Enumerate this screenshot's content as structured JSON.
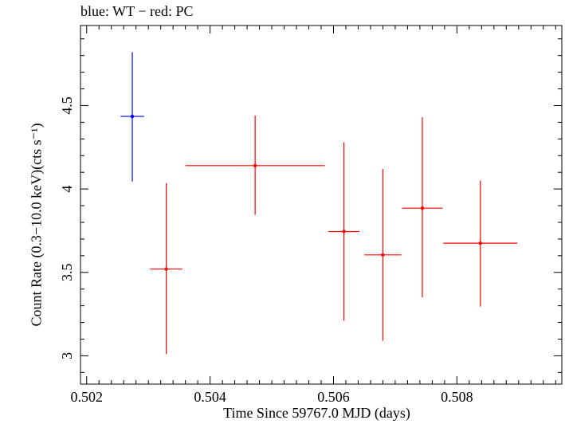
{
  "chart_data": {
    "type": "scatter",
    "title": "blue: WT − red: PC",
    "xlabel": "Time Since 59767.0 MJD (days)",
    "ylabel": "Count Rate (0.3−10.0 keV)(cts s⁻¹)",
    "xlim": [
      0.5019,
      0.5097
    ],
    "ylim": [
      2.83,
      4.98
    ],
    "x_ticks": [
      0.502,
      0.504,
      0.506,
      0.508
    ],
    "x_tick_labels": [
      "0.502",
      "0.504",
      "0.506",
      "0.508"
    ],
    "y_ticks": [
      3,
      3.5,
      4,
      4.5
    ],
    "y_tick_labels": [
      "3",
      "3.5",
      "4",
      "4.5"
    ],
    "grid": false,
    "series": [
      {
        "name": "WT",
        "color": "#0000ff",
        "points": [
          {
            "x": 0.50274,
            "xerr": 0.00019,
            "y": 4.435,
            "yerr_low": 0.39,
            "yerr_high": 0.385
          }
        ]
      },
      {
        "name": "PC",
        "color": "#ff0000",
        "points": [
          {
            "x": 0.50329,
            "xerr": 0.00026,
            "y": 3.52,
            "yerr_low": 0.51,
            "yerr_high": 0.515
          },
          {
            "x": 0.50473,
            "xerr": 0.00113,
            "y": 4.14,
            "yerr_low": 0.295,
            "yerr_high": 0.3
          },
          {
            "x": 0.50617,
            "xerr": 0.00025,
            "y": 3.745,
            "yerr_low": 0.535,
            "yerr_high": 0.535
          },
          {
            "x": 0.5068,
            "xerr": 0.0003,
            "y": 3.605,
            "yerr_low": 0.515,
            "yerr_high": 0.515
          },
          {
            "x": 0.50744,
            "xerr": 0.00033,
            "y": 3.885,
            "yerr_low": 0.535,
            "yerr_high": 0.545
          },
          {
            "x": 0.50838,
            "xerr": 0.0006,
            "y": 3.675,
            "yerr_low": 0.38,
            "yerr_high": 0.375
          }
        ]
      }
    ]
  }
}
